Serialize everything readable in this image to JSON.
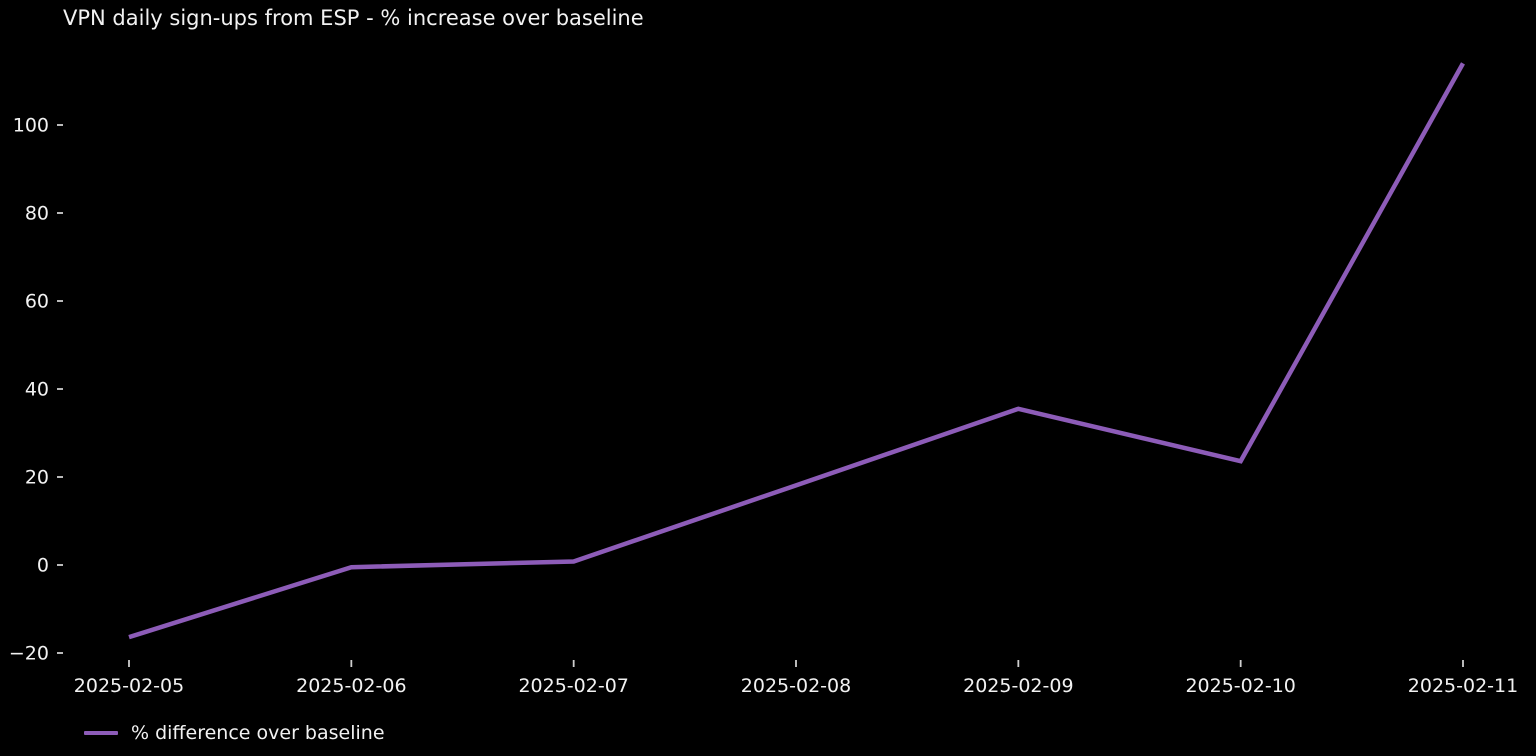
{
  "chart_data": {
    "type": "line",
    "title": "VPN daily sign-ups from ESP - % increase over baseline",
    "x": [
      "2025-02-05",
      "2025-02-06",
      "2025-02-07",
      "2025-02-08",
      "2025-02-09",
      "2025-02-10",
      "2025-02-11"
    ],
    "series": [
      {
        "name": "% difference over baseline",
        "values": [
          -16.4,
          -0.5,
          0.8,
          18.1,
          35.5,
          23.6,
          114.0
        ]
      }
    ],
    "xlabel": "",
    "ylabel": "",
    "yticks": [
      -20,
      0,
      20,
      40,
      60,
      80,
      100
    ],
    "ylim": [
      -22,
      118
    ],
    "grid": false,
    "spines": false,
    "legend_position": "lower-left-below-axis",
    "background_color": "#000000",
    "line_color": "#8d5cb8",
    "line_width": 4.5,
    "text_color": "#f2f2f2",
    "tick_color": "#cfcfcf"
  }
}
